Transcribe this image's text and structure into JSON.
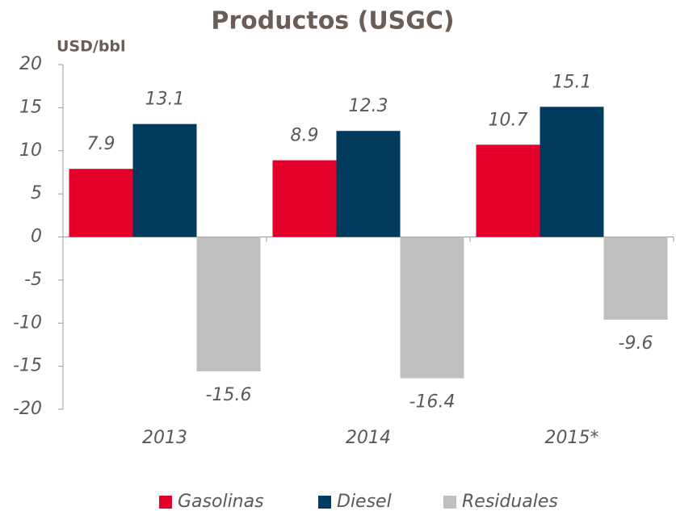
{
  "chart_data": {
    "type": "bar",
    "title": "Productos (USGC)",
    "y_label": "USD/bbl",
    "categories": [
      "2013",
      "2014",
      "2015*"
    ],
    "series": [
      {
        "name": "Gasolinas",
        "color": "#e4002b",
        "values": [
          7.9,
          8.9,
          10.7
        ]
      },
      {
        "name": "Diesel",
        "color": "#003a5d",
        "values": [
          13.1,
          12.3,
          15.1
        ]
      },
      {
        "name": "Residuales",
        "color": "#bfbfbf",
        "values": [
          -15.6,
          -16.4,
          -9.6
        ]
      }
    ],
    "ylim": [
      -20,
      20
    ],
    "yticks": [
      -20,
      -15,
      -10,
      -5,
      0,
      5,
      10,
      15,
      20
    ],
    "grid": false,
    "legend": "bottom"
  }
}
